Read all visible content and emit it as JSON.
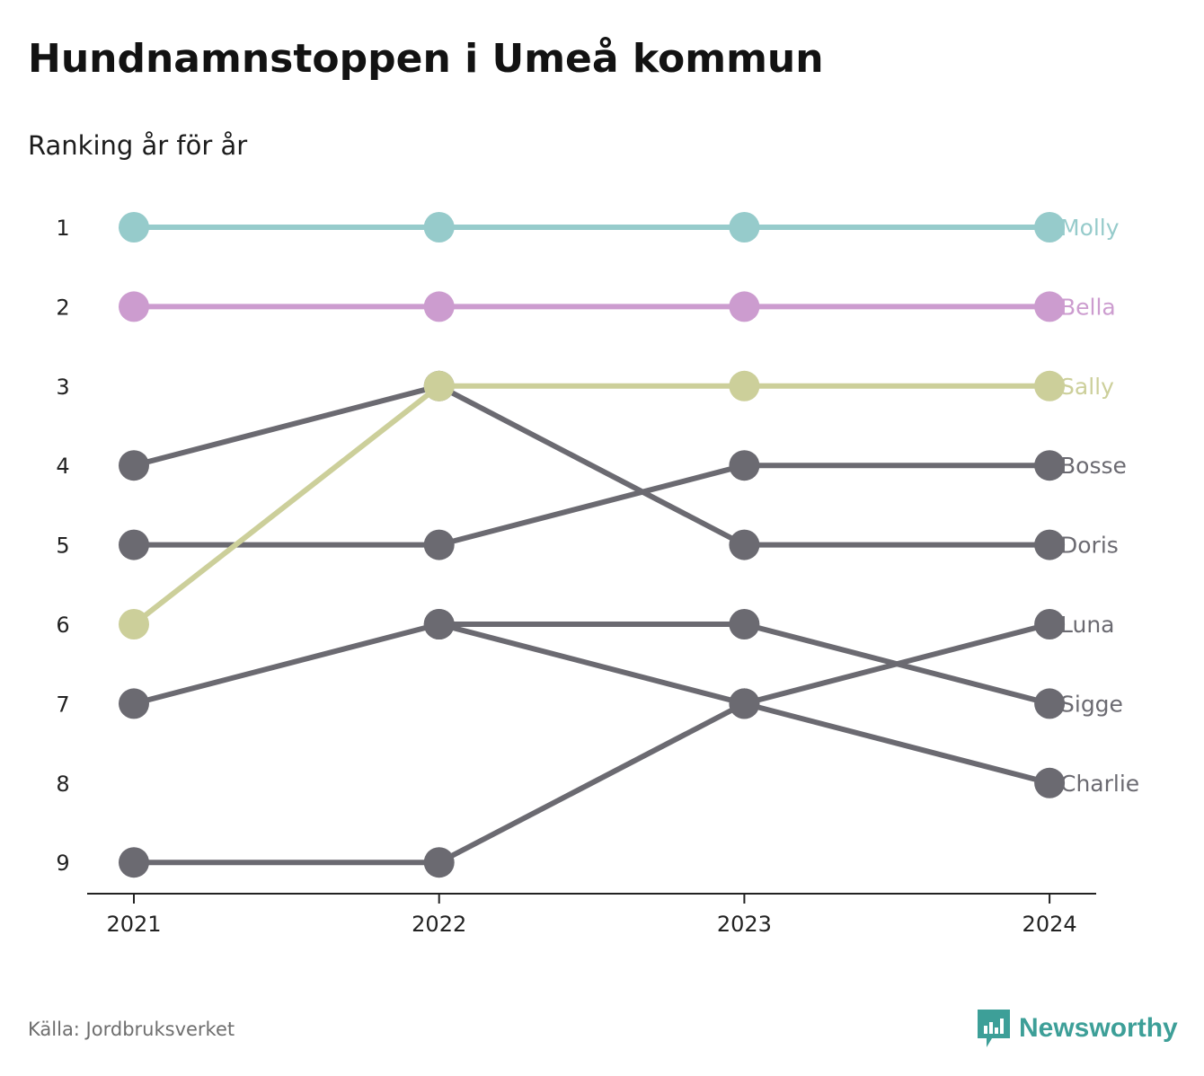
{
  "title": "Hundnamnstoppen i Umeå kommun",
  "subtitle": "Ranking år för år",
  "source": "Källa: Jordbruksverket",
  "brand": {
    "name": "Newsworthy",
    "icon": "newsworthy-logo-icon",
    "color": "#3d9f98"
  },
  "chart_data": {
    "type": "line",
    "x": [
      "2021",
      "2022",
      "2023",
      "2024"
    ],
    "y_ticks": [
      1,
      2,
      3,
      4,
      5,
      6,
      7,
      8,
      9
    ],
    "ylim": [
      1,
      9
    ],
    "y_inverted": true,
    "grid": false,
    "legend": "labels at line ends (right)",
    "series": [
      {
        "name": "Molly",
        "color": "#96cbcb",
        "values": [
          1,
          1,
          1,
          1
        ]
      },
      {
        "name": "Bella",
        "color": "#cc9ccf",
        "values": [
          2,
          2,
          2,
          2
        ]
      },
      {
        "name": "Sally",
        "color": "#cccf9a",
        "values": [
          6,
          3,
          3,
          3
        ]
      },
      {
        "name": "Bosse",
        "color": "#6b6a71",
        "values": [
          5,
          5,
          4,
          4
        ]
      },
      {
        "name": "Doris",
        "color": "#6b6a71",
        "values": [
          4,
          3,
          5,
          5
        ]
      },
      {
        "name": "Luna",
        "color": "#6b6a71",
        "values": [
          9,
          9,
          7,
          6
        ]
      },
      {
        "name": "Sigge",
        "color": "#6b6a71",
        "values": [
          null,
          6,
          6,
          7
        ]
      },
      {
        "name": "Charlie",
        "color": "#6b6a71",
        "values": [
          7,
          6,
          7,
          8
        ]
      }
    ]
  }
}
